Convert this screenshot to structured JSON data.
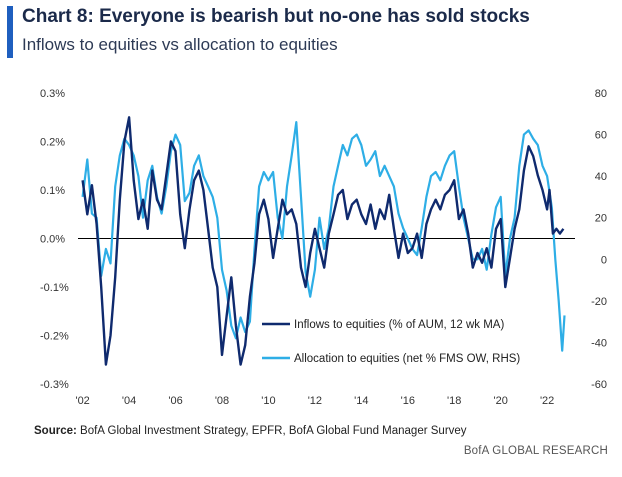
{
  "header": {
    "title": "Chart 8: Everyone is bearish but no-one has sold stocks",
    "subtitle": "Inflows to equities vs allocation to equities"
  },
  "footer": {
    "source_label": "Source:",
    "source_text": "BofA Global Investment Strategy, EPFR, BofA Global Fund Manager Survey",
    "credit": "BofA GLOBAL RESEARCH"
  },
  "colors": {
    "accent": "#1f5fbf",
    "inflows": "#0f2a6e",
    "allocation": "#2eaee6",
    "zero_line": "#000000"
  },
  "chart_data": {
    "type": "line",
    "title": "Chart 8: Everyone is bearish but no-one has sold stocks",
    "subtitle": "Inflows to equities vs allocation to equities",
    "x_ticks": [
      "'02",
      "'04",
      "'06",
      "'08",
      "'10",
      "'12",
      "'14",
      "'16",
      "'18",
      "'20",
      "'22"
    ],
    "x_range": [
      2001.8,
      2023.2
    ],
    "y_left": {
      "range": [
        -0.3,
        0.3
      ],
      "ticks": [
        "0.3%",
        "0.2%",
        "0.1%",
        "0.0%",
        "-0.1%",
        "-0.2%",
        "-0.3%"
      ],
      "tick_values": [
        0.3,
        0.2,
        0.1,
        0.0,
        -0.1,
        -0.2,
        -0.3
      ]
    },
    "y_right": {
      "range": [
        -60,
        80
      ],
      "ticks": [
        "80",
        "60",
        "40",
        "20",
        "0",
        "-20",
        "-40",
        "-60"
      ],
      "tick_values": [
        80,
        60,
        40,
        20,
        0,
        -20,
        -40,
        -60
      ]
    },
    "grid": false,
    "legend_position": "bottom-right inside plot",
    "series": [
      {
        "name": "Inflows to equities (% of AUM, 12 wk MA)",
        "axis": "left",
        "points": [
          [
            2002.0,
            0.12
          ],
          [
            2002.2,
            0.05
          ],
          [
            2002.4,
            0.11
          ],
          [
            2002.6,
            0.03
          ],
          [
            2002.8,
            -0.1
          ],
          [
            2003.0,
            -0.26
          ],
          [
            2003.2,
            -0.2
          ],
          [
            2003.4,
            -0.08
          ],
          [
            2003.6,
            0.08
          ],
          [
            2003.8,
            0.2
          ],
          [
            2004.0,
            0.25
          ],
          [
            2004.2,
            0.12
          ],
          [
            2004.4,
            0.04
          ],
          [
            2004.6,
            0.08
          ],
          [
            2004.8,
            0.02
          ],
          [
            2005.0,
            0.14
          ],
          [
            2005.2,
            0.08
          ],
          [
            2005.4,
            0.06
          ],
          [
            2005.6,
            0.13
          ],
          [
            2005.8,
            0.2
          ],
          [
            2006.0,
            0.18
          ],
          [
            2006.2,
            0.05
          ],
          [
            2006.4,
            -0.02
          ],
          [
            2006.6,
            0.06
          ],
          [
            2006.8,
            0.12
          ],
          [
            2007.0,
            0.14
          ],
          [
            2007.2,
            0.1
          ],
          [
            2007.4,
            0.02
          ],
          [
            2007.6,
            -0.06
          ],
          [
            2007.8,
            -0.1
          ],
          [
            2008.0,
            -0.24
          ],
          [
            2008.2,
            -0.16
          ],
          [
            2008.4,
            -0.08
          ],
          [
            2008.6,
            -0.18
          ],
          [
            2008.8,
            -0.26
          ],
          [
            2009.0,
            -0.22
          ],
          [
            2009.2,
            -0.12
          ],
          [
            2009.4,
            -0.05
          ],
          [
            2009.6,
            0.05
          ],
          [
            2009.8,
            0.08
          ],
          [
            2010.0,
            0.04
          ],
          [
            2010.2,
            -0.04
          ],
          [
            2010.4,
            0.02
          ],
          [
            2010.6,
            0.08
          ],
          [
            2010.8,
            0.05
          ],
          [
            2011.0,
            0.06
          ],
          [
            2011.2,
            0.03
          ],
          [
            2011.4,
            -0.06
          ],
          [
            2011.6,
            -0.1
          ],
          [
            2011.8,
            -0.03
          ],
          [
            2012.0,
            0.02
          ],
          [
            2012.2,
            -0.02
          ],
          [
            2012.4,
            -0.06
          ],
          [
            2012.6,
            0.01
          ],
          [
            2012.8,
            0.05
          ],
          [
            2013.0,
            0.09
          ],
          [
            2013.2,
            0.1
          ],
          [
            2013.4,
            0.04
          ],
          [
            2013.6,
            0.07
          ],
          [
            2013.8,
            0.08
          ],
          [
            2014.0,
            0.05
          ],
          [
            2014.2,
            0.03
          ],
          [
            2014.4,
            0.07
          ],
          [
            2014.6,
            0.02
          ],
          [
            2014.8,
            0.06
          ],
          [
            2015.0,
            0.04
          ],
          [
            2015.2,
            0.09
          ],
          [
            2015.4,
            0.02
          ],
          [
            2015.6,
            -0.04
          ],
          [
            2015.8,
            0.01
          ],
          [
            2016.0,
            -0.03
          ],
          [
            2016.2,
            -0.02
          ],
          [
            2016.4,
            0.01
          ],
          [
            2016.6,
            -0.04
          ],
          [
            2016.8,
            0.03
          ],
          [
            2017.0,
            0.06
          ],
          [
            2017.2,
            0.08
          ],
          [
            2017.4,
            0.06
          ],
          [
            2017.6,
            0.09
          ],
          [
            2017.8,
            0.1
          ],
          [
            2018.0,
            0.12
          ],
          [
            2018.2,
            0.04
          ],
          [
            2018.4,
            0.06
          ],
          [
            2018.6,
            0.01
          ],
          [
            2018.8,
            -0.06
          ],
          [
            2019.0,
            -0.03
          ],
          [
            2019.2,
            -0.05
          ],
          [
            2019.4,
            -0.02
          ],
          [
            2019.6,
            -0.06
          ],
          [
            2019.8,
            0.02
          ],
          [
            2020.0,
            0.04
          ],
          [
            2020.2,
            -0.1
          ],
          [
            2020.4,
            -0.04
          ],
          [
            2020.6,
            0.02
          ],
          [
            2020.8,
            0.06
          ],
          [
            2021.0,
            0.14
          ],
          [
            2021.2,
            0.19
          ],
          [
            2021.4,
            0.17
          ],
          [
            2021.6,
            0.13
          ],
          [
            2021.8,
            0.1
          ],
          [
            2022.0,
            0.06
          ],
          [
            2022.1,
            0.1
          ],
          [
            2022.25,
            0.01
          ],
          [
            2022.4,
            0.02
          ],
          [
            2022.55,
            0.01
          ],
          [
            2022.7,
            0.02
          ]
        ]
      },
      {
        "name": "Allocation to equities (net % FMS OW, RHS)",
        "axis": "right",
        "points": [
          [
            2002.0,
            30
          ],
          [
            2002.2,
            48
          ],
          [
            2002.4,
            22
          ],
          [
            2002.6,
            20
          ],
          [
            2002.8,
            -8
          ],
          [
            2003.0,
            5
          ],
          [
            2003.2,
            -2
          ],
          [
            2003.4,
            35
          ],
          [
            2003.6,
            50
          ],
          [
            2003.8,
            58
          ],
          [
            2004.0,
            55
          ],
          [
            2004.2,
            50
          ],
          [
            2004.4,
            40
          ],
          [
            2004.6,
            20
          ],
          [
            2004.8,
            38
          ],
          [
            2005.0,
            45
          ],
          [
            2005.2,
            30
          ],
          [
            2005.4,
            22
          ],
          [
            2005.6,
            35
          ],
          [
            2005.8,
            52
          ],
          [
            2006.0,
            60
          ],
          [
            2006.2,
            55
          ],
          [
            2006.4,
            28
          ],
          [
            2006.6,
            32
          ],
          [
            2006.8,
            45
          ],
          [
            2007.0,
            50
          ],
          [
            2007.2,
            40
          ],
          [
            2007.4,
            35
          ],
          [
            2007.6,
            30
          ],
          [
            2007.8,
            20
          ],
          [
            2008.0,
            -5
          ],
          [
            2008.2,
            -15
          ],
          [
            2008.4,
            -32
          ],
          [
            2008.6,
            -38
          ],
          [
            2008.8,
            -28
          ],
          [
            2009.0,
            -35
          ],
          [
            2009.2,
            -30
          ],
          [
            2009.4,
            5
          ],
          [
            2009.6,
            35
          ],
          [
            2009.8,
            42
          ],
          [
            2010.0,
            38
          ],
          [
            2010.2,
            42
          ],
          [
            2010.4,
            20
          ],
          [
            2010.6,
            10
          ],
          [
            2010.8,
            35
          ],
          [
            2011.0,
            50
          ],
          [
            2011.2,
            66
          ],
          [
            2011.4,
            30
          ],
          [
            2011.6,
            -6
          ],
          [
            2011.8,
            -18
          ],
          [
            2012.0,
            -5
          ],
          [
            2012.2,
            20
          ],
          [
            2012.4,
            5
          ],
          [
            2012.6,
            15
          ],
          [
            2012.8,
            35
          ],
          [
            2013.0,
            45
          ],
          [
            2013.2,
            55
          ],
          [
            2013.4,
            50
          ],
          [
            2013.6,
            58
          ],
          [
            2013.8,
            60
          ],
          [
            2014.0,
            55
          ],
          [
            2014.2,
            45
          ],
          [
            2014.4,
            48
          ],
          [
            2014.6,
            52
          ],
          [
            2014.8,
            40
          ],
          [
            2015.0,
            45
          ],
          [
            2015.2,
            40
          ],
          [
            2015.4,
            35
          ],
          [
            2015.6,
            22
          ],
          [
            2015.8,
            15
          ],
          [
            2016.0,
            10
          ],
          [
            2016.2,
            5
          ],
          [
            2016.4,
            2
          ],
          [
            2016.6,
            15
          ],
          [
            2016.8,
            30
          ],
          [
            2017.0,
            40
          ],
          [
            2017.2,
            42
          ],
          [
            2017.4,
            38
          ],
          [
            2017.6,
            45
          ],
          [
            2017.8,
            50
          ],
          [
            2018.0,
            52
          ],
          [
            2018.2,
            35
          ],
          [
            2018.4,
            20
          ],
          [
            2018.6,
            10
          ],
          [
            2018.8,
            0
          ],
          [
            2019.0,
            0
          ],
          [
            2019.2,
            5
          ],
          [
            2019.4,
            -5
          ],
          [
            2019.6,
            12
          ],
          [
            2019.8,
            25
          ],
          [
            2020.0,
            30
          ],
          [
            2020.2,
            -8
          ],
          [
            2020.4,
            10
          ],
          [
            2020.6,
            20
          ],
          [
            2020.8,
            45
          ],
          [
            2021.0,
            60
          ],
          [
            2021.2,
            62
          ],
          [
            2021.4,
            58
          ],
          [
            2021.6,
            55
          ],
          [
            2021.8,
            45
          ],
          [
            2022.0,
            40
          ],
          [
            2022.2,
            25
          ],
          [
            2022.35,
            0
          ],
          [
            2022.5,
            -20
          ],
          [
            2022.65,
            -44
          ],
          [
            2022.75,
            -27
          ]
        ]
      }
    ]
  }
}
